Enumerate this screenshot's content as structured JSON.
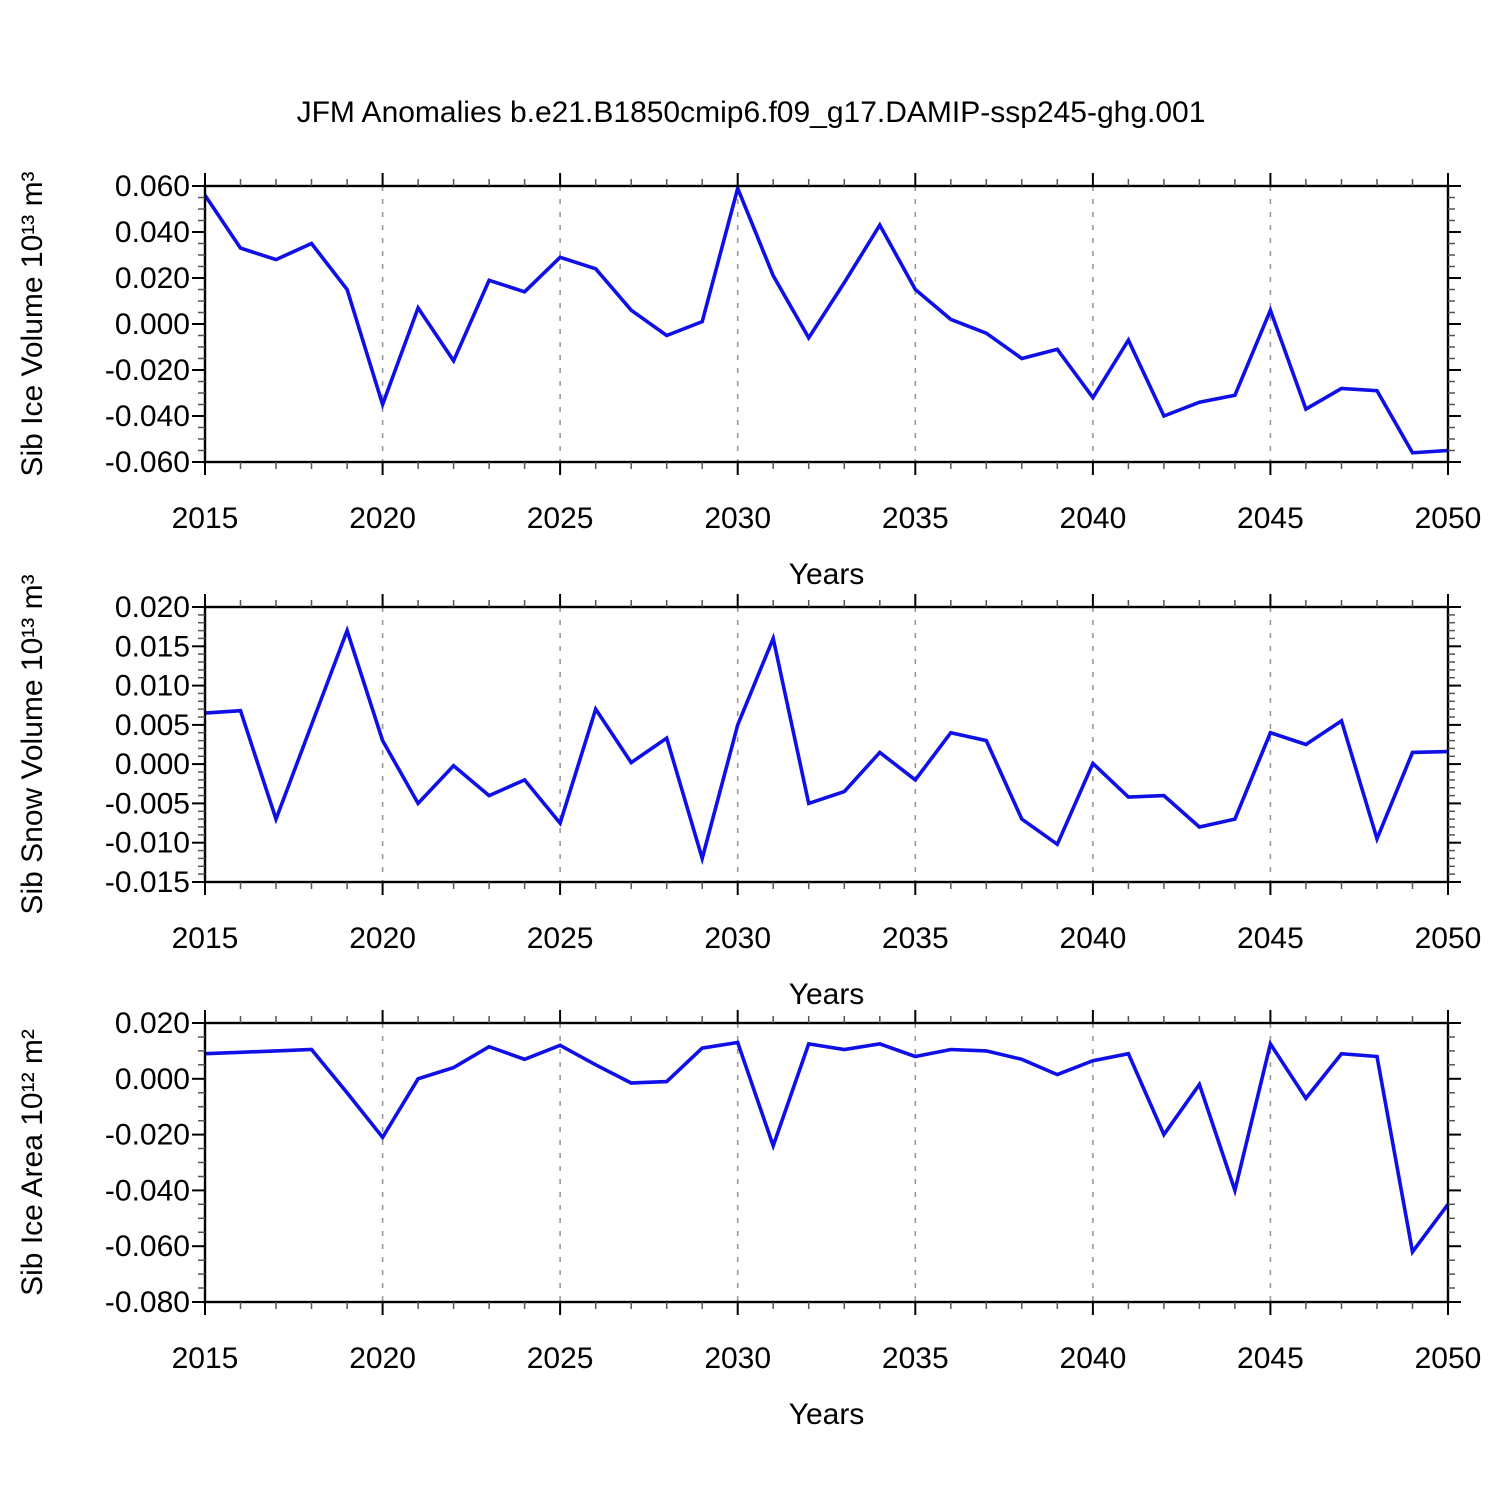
{
  "title": "JFM Anomalies b.e21.B1850cmip6.f09_g17.DAMIP-ssp245-ghg.001",
  "accent_color": "#0F0FE8",
  "chart_data": [
    {
      "type": "line",
      "name": "sib-ice-volume",
      "ylabel": "Sib Ice Volume 10¹³ m³",
      "xlabel": "Years",
      "line_color": "#0F0FE8",
      "x_start": 2015,
      "x_end": 2050,
      "x_major_ticks": [
        2015,
        2020,
        2025,
        2030,
        2035,
        2040,
        2045,
        2050
      ],
      "x_tick_labels": [
        "2015",
        "2020",
        "2025",
        "2030",
        "2035",
        "2040",
        "2045",
        "2050"
      ],
      "grid_years": [
        2020,
        2025,
        2030,
        2035,
        2040,
        2045
      ],
      "ylim": [
        -0.06,
        0.06
      ],
      "ytick_values": [
        0.06,
        0.04,
        0.02,
        0.0,
        -0.02,
        -0.04,
        -0.06
      ],
      "ytick_labels": [
        "0.060",
        "0.040",
        "0.020",
        "0.000",
        "-0.020",
        "-0.040",
        "-0.060"
      ],
      "y_minor_step": 0.005,
      "grid": "vertical-dashed",
      "legend": "none",
      "values": [
        0.056,
        0.033,
        0.028,
        0.035,
        0.015,
        -0.035,
        0.007,
        -0.016,
        0.019,
        0.014,
        0.029,
        0.024,
        0.006,
        -0.005,
        0.001,
        0.059,
        0.021,
        -0.006,
        0.018,
        0.043,
        0.015,
        0.002,
        -0.004,
        -0.015,
        -0.011,
        -0.032,
        -0.007,
        -0.04,
        -0.034,
        -0.031,
        0.006,
        -0.037,
        -0.028,
        -0.029,
        -0.056,
        -0.055
      ]
    },
    {
      "type": "line",
      "name": "sib-snow-volume",
      "ylabel": "Sib Snow Volume 10¹³ m³",
      "xlabel": "Years",
      "line_color": "#0F0FE8",
      "x_start": 2015,
      "x_end": 2050,
      "x_major_ticks": [
        2015,
        2020,
        2025,
        2030,
        2035,
        2040,
        2045,
        2050
      ],
      "x_tick_labels": [
        "2015",
        "2020",
        "2025",
        "2030",
        "2035",
        "2040",
        "2045",
        "2050"
      ],
      "grid_years": [
        2020,
        2025,
        2030,
        2035,
        2040,
        2045
      ],
      "ylim": [
        -0.015,
        0.02
      ],
      "ytick_values": [
        0.02,
        0.015,
        0.01,
        0.005,
        0.0,
        -0.005,
        -0.01,
        -0.015
      ],
      "ytick_labels": [
        "0.020",
        "0.015",
        "0.010",
        "0.005",
        "0.000",
        "-0.005",
        "-0.010",
        "-0.015"
      ],
      "y_minor_step": 0.001,
      "grid": "vertical-dashed",
      "legend": "none",
      "values": [
        0.0065,
        0.0068,
        -0.007,
        0.005,
        0.017,
        0.003,
        -0.005,
        -0.0002,
        -0.004,
        -0.002,
        -0.0075,
        0.007,
        0.0002,
        0.0033,
        -0.012,
        0.005,
        0.016,
        -0.005,
        -0.0035,
        0.0015,
        -0.002,
        0.004,
        0.003,
        -0.007,
        -0.0102,
        0.0001,
        -0.0042,
        -0.004,
        -0.008,
        -0.007,
        0.004,
        0.0025,
        0.0055,
        -0.0095,
        0.0015,
        0.0016
      ]
    },
    {
      "type": "line",
      "name": "sib-ice-area",
      "ylabel": "Sib Ice Area 10¹² m²",
      "xlabel": "Years",
      "line_color": "#0F0FE8",
      "x_start": 2015,
      "x_end": 2050,
      "x_major_ticks": [
        2015,
        2020,
        2025,
        2030,
        2035,
        2040,
        2045,
        2050
      ],
      "x_tick_labels": [
        "2015",
        "2020",
        "2025",
        "2030",
        "2035",
        "2040",
        "2045",
        "2050"
      ],
      "grid_years": [
        2020,
        2025,
        2030,
        2035,
        2040,
        2045
      ],
      "ylim": [
        -0.08,
        0.02
      ],
      "ytick_values": [
        0.02,
        0.0,
        -0.02,
        -0.04,
        -0.06,
        -0.08
      ],
      "ytick_labels": [
        "0.020",
        "0.000",
        "-0.020",
        "-0.040",
        "-0.060",
        "-0.080"
      ],
      "y_minor_step": 0.005,
      "grid": "vertical-dashed",
      "legend": "none",
      "values": [
        0.009,
        0.0095,
        0.01,
        0.0105,
        -0.005,
        -0.021,
        0.0,
        0.004,
        0.0115,
        0.007,
        0.012,
        0.005,
        -0.0015,
        -0.001,
        0.011,
        0.013,
        -0.024,
        0.0125,
        0.0105,
        0.0125,
        0.008,
        0.0105,
        0.01,
        0.007,
        0.0015,
        0.0065,
        0.009,
        -0.02,
        -0.002,
        -0.04,
        0.0125,
        -0.007,
        0.009,
        0.008,
        -0.062,
        -0.045
      ]
    }
  ]
}
